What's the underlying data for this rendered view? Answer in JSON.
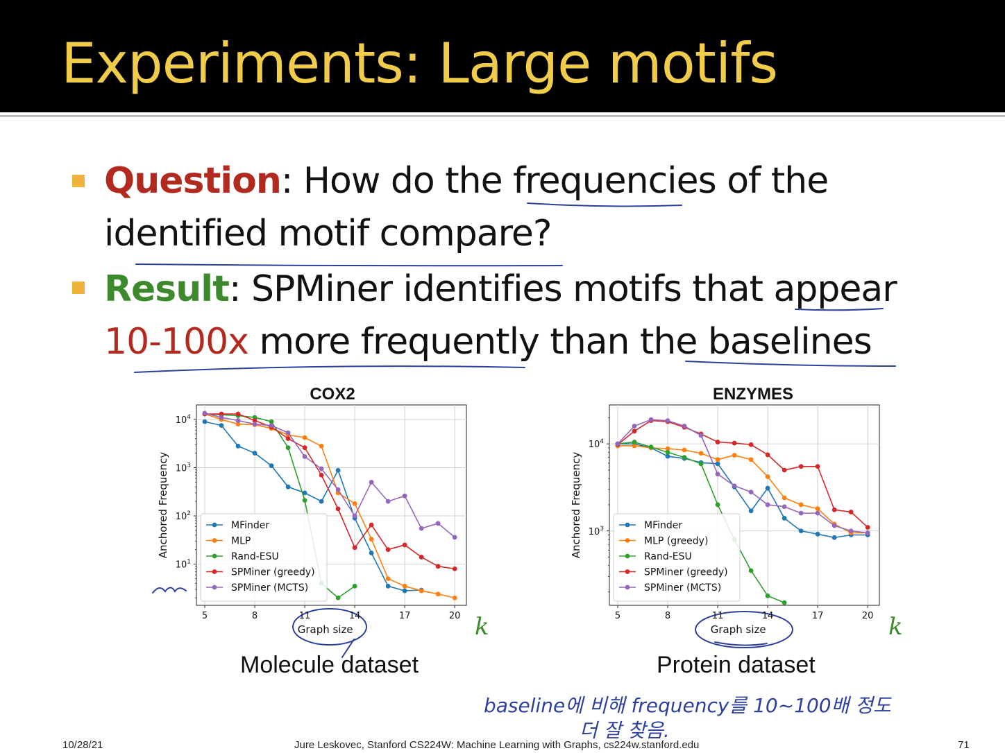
{
  "slide": {
    "title": "Experiments: Large motifs",
    "bullets": [
      {
        "label": "Question",
        "line1": ": How do the frequencies of the",
        "line2": "identified motif compare?"
      },
      {
        "label": "Result",
        "line1": ": SPMiner identifies motifs that appear",
        "highlight": "10-100x",
        "line2": " more frequently than the baselines"
      }
    ],
    "captions": [
      "Molecule dataset",
      "Protein dataset"
    ],
    "k_label": "k",
    "handwriting": {
      "line1": "baseline에 비해  frequency를  10~100배 정도",
      "line2": "더 잘 찾음."
    },
    "footer": {
      "date": "10/28/21",
      "credit": "Jure Leskovec, Stanford CS224W: Machine Learning with Graphs, cs224w.stanford.edu",
      "page": "71"
    }
  },
  "chart_data": [
    {
      "type": "line",
      "title": "COX2",
      "xlabel": "Graph size",
      "ylabel": "Anchored Frequency",
      "yscale": "log",
      "x_ticks": [
        5,
        8,
        11,
        14,
        17,
        20
      ],
      "y_ticks": [
        "10^1",
        "10^2",
        "10^3",
        "10^4"
      ],
      "xlim": [
        4.5,
        20.7
      ],
      "ylim": [
        1.4,
        20000
      ],
      "grid": true,
      "legend_position": "lower-left",
      "series": [
        {
          "name": "MFinder",
          "color": "#1f77b4",
          "x": [
            5,
            6,
            7,
            8,
            9,
            10,
            11,
            12,
            13,
            14,
            15,
            16,
            17,
            18,
            19,
            20
          ],
          "y": [
            9000,
            7500,
            2800,
            2000,
            1100,
            400,
            300,
            200,
            880,
            90,
            17,
            3.5,
            2.8,
            2.9,
            null,
            null
          ]
        },
        {
          "name": "MLP",
          "color": "#ff7f0e",
          "x": [
            5,
            6,
            7,
            8,
            9,
            10,
            11,
            12,
            13,
            14,
            15,
            16,
            17,
            18,
            19,
            20
          ],
          "y": [
            13000,
            10000,
            8000,
            7800,
            6500,
            4800,
            4200,
            2800,
            300,
            180,
            33,
            5,
            3.5,
            2.8,
            2.4,
            2
          ]
        },
        {
          "name": "Rand-ESU",
          "color": "#2ca02c",
          "x": [
            5,
            6,
            7,
            8,
            9,
            10,
            11,
            12,
            13,
            14
          ],
          "y": [
            13000,
            12500,
            12000,
            11000,
            9000,
            2600,
            210,
            4,
            2,
            3.5
          ]
        },
        {
          "name": "SPMiner (greedy)",
          "color": "#d62728",
          "x": [
            5,
            6,
            7,
            8,
            9,
            10,
            11,
            12,
            13,
            14,
            15,
            16,
            17,
            18,
            19,
            20
          ],
          "y": [
            13000,
            13000,
            13000,
            9500,
            7000,
            4000,
            2600,
            700,
            140,
            22,
            65,
            20,
            25,
            14,
            9,
            8
          ]
        },
        {
          "name": "SPMiner (MCTS)",
          "color": "#9467bd",
          "x": [
            5,
            6,
            7,
            8,
            9,
            10,
            11,
            12,
            13,
            14,
            15,
            16,
            17,
            18,
            19,
            20
          ],
          "y": [
            13500,
            11000,
            9500,
            8000,
            7500,
            5300,
            1700,
            950,
            350,
            100,
            500,
            200,
            260,
            55,
            70,
            36
          ]
        }
      ]
    },
    {
      "type": "line",
      "title": "ENZYMES",
      "xlabel": "Graph size",
      "ylabel": "Anchored Frequency",
      "yscale": "log",
      "x_ticks": [
        5,
        8,
        11,
        14,
        17,
        20
      ],
      "y_ticks": [
        "10^3",
        "10^4"
      ],
      "xlim": [
        4.5,
        20.7
      ],
      "ylim": [
        140,
        28000
      ],
      "grid": true,
      "legend_position": "lower-left",
      "series": [
        {
          "name": "MFinder",
          "color": "#1f77b4",
          "x": [
            5,
            6,
            7,
            8,
            9,
            10,
            11,
            12,
            13,
            14,
            15,
            16,
            17,
            18,
            19,
            20
          ],
          "y": [
            10000,
            10000,
            9000,
            7200,
            6800,
            6100,
            5900,
            3200,
            1700,
            3100,
            1400,
            1000,
            920,
            840,
            900,
            900
          ]
        },
        {
          "name": "MLP (greedy)",
          "color": "#ff7f0e",
          "x": [
            5,
            6,
            7,
            8,
            9,
            10,
            11,
            12,
            13,
            14,
            15,
            16,
            17,
            18,
            19,
            20
          ],
          "y": [
            9500,
            9500,
            9000,
            8800,
            8500,
            7800,
            6600,
            7400,
            6600,
            4200,
            2400,
            2000,
            1800,
            1200,
            950,
            950
          ]
        },
        {
          "name": "Rand-ESU",
          "color": "#2ca02c",
          "x": [
            5,
            6,
            7,
            8,
            9,
            10,
            11,
            12,
            13,
            14,
            15
          ],
          "y": [
            10000,
            10500,
            9200,
            8000,
            7000,
            5900,
            2000,
            800,
            350,
            180,
            150
          ]
        },
        {
          "name": "SPMiner (greedy)",
          "color": "#d62728",
          "x": [
            5,
            6,
            7,
            8,
            9,
            10,
            11,
            12,
            13,
            14,
            15,
            16,
            17,
            18,
            19,
            20
          ],
          "y": [
            9800,
            14000,
            18500,
            18000,
            15500,
            13000,
            10500,
            10200,
            9800,
            7500,
            5000,
            5500,
            5500,
            1750,
            1650,
            1100
          ]
        },
        {
          "name": "SPMiner (MCTS)",
          "color": "#9467bd",
          "x": [
            5,
            6,
            7,
            8,
            9,
            10,
            11,
            12,
            13,
            14,
            15,
            16,
            17,
            18,
            19,
            20
          ],
          "y": [
            10000,
            16000,
            19000,
            18500,
            16000,
            12500,
            4500,
            3300,
            2800,
            2000,
            1900,
            1600,
            1600,
            1150,
            1000,
            950
          ]
        }
      ]
    }
  ]
}
